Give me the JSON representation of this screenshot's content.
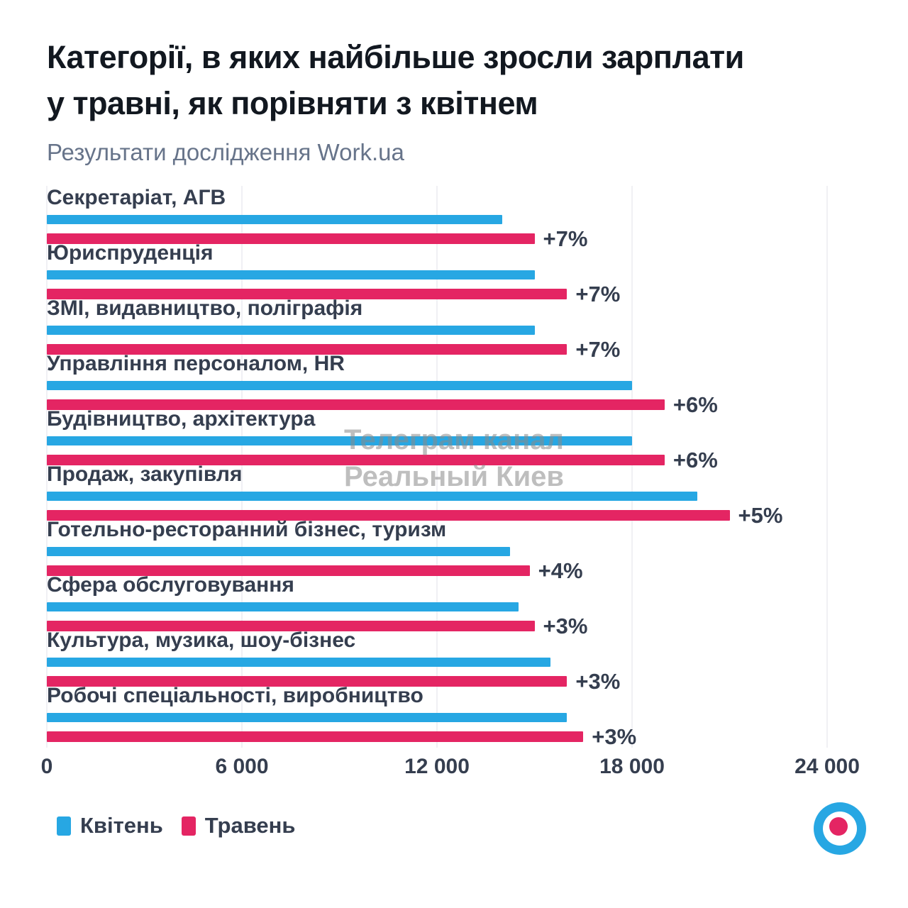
{
  "header": {
    "title_line1": "Категорії, в яких найбільше зросли зарплати",
    "title_line2": "у травні, як порівняти з квітнем",
    "subtitle": "Результати дослідження Work.ua"
  },
  "watermark": {
    "line1": "Телеграм канал",
    "line2": "Реальный Киев"
  },
  "colors": {
    "april_blue": "#27A7E3",
    "may_pink": "#E42563",
    "label_dark": "#353E4F",
    "title_dark": "#121820",
    "subtitle_gray": "#67748A",
    "gridline": "#F0F0F4",
    "watermark_gray": "#8A8A8A",
    "logo_ring": "#27A7E3",
    "logo_center": "#E42563"
  },
  "legend": {
    "items": [
      {
        "label": "Квітень",
        "color": "#27A7E3"
      },
      {
        "label": "Травень",
        "color": "#E42563"
      }
    ]
  },
  "logo": {
    "icon": "work-ua-target-icon"
  },
  "chart_data": {
    "type": "bar",
    "orientation": "horizontal",
    "title": "Категорії, в яких найбільше зросли зарплати у травні, як порівняти з квітнем",
    "subtitle": "Результати дослідження Work.ua",
    "xlim": [
      0,
      24000
    ],
    "x_ticks": [
      "0",
      "6 000",
      "12 000",
      "18 000",
      "24 000"
    ],
    "x_tick_values": [
      0,
      6000,
      12000,
      18000,
      24000
    ],
    "grid": true,
    "legend_position": "bottom-left",
    "series_names": [
      "Квітень",
      "Травень"
    ],
    "categories": [
      {
        "label": "Секретаріат, АГВ",
        "april": 14000,
        "may": 15000,
        "change": "+7%"
      },
      {
        "label": "Юриспруденція",
        "april": 15000,
        "may": 16000,
        "change": "+7%"
      },
      {
        "label": "ЗМІ, видавництво, поліграфія",
        "april": 15000,
        "may": 16000,
        "change": "+7%"
      },
      {
        "label": "Управління персоналом, HR",
        "april": 18000,
        "may": 19000,
        "change": "+6%"
      },
      {
        "label": "Будівництво, архітектура",
        "april": 18000,
        "may": 19000,
        "change": "+6%"
      },
      {
        "label": "Продаж, закупівля",
        "april": 20000,
        "may": 21000,
        "change": "+5%"
      },
      {
        "label": "Готельно-ресторанний бізнес, туризм",
        "april": 14250,
        "may": 14850,
        "change": "+4%"
      },
      {
        "label": "Сфера обслуговування",
        "april": 14500,
        "may": 15000,
        "change": "+3%"
      },
      {
        "label": "Культура, музика, шоу-бізнес",
        "april": 15500,
        "may": 16000,
        "change": "+3%"
      },
      {
        "label": "Робочі спеціальності, виробництво",
        "april": 16000,
        "may": 16500,
        "change": "+3%"
      }
    ]
  }
}
